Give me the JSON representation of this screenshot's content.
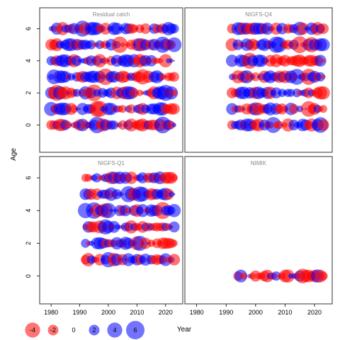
{
  "chart_data": {
    "type": "scatter",
    "subtype": "bubble-residual",
    "x_label": "Year",
    "y_label": "Age",
    "xlim": [
      1976,
      2026
    ],
    "ylim": [
      -1.7,
      7.3
    ],
    "x_ticks": [
      1980,
      1990,
      2000,
      2010,
      2020
    ],
    "y_ticks": [
      0,
      2,
      4,
      6
    ],
    "x_tick_labels": [
      "1980",
      "1990",
      "2000",
      "2010",
      "2020"
    ],
    "y_tick_labels": [
      "0",
      "2",
      "4",
      "6"
    ],
    "colors": {
      "positive": "#0000ff",
      "negative": "#ff0000",
      "frame": "#555555"
    },
    "legend": {
      "position": "bottom-left",
      "values": [
        -4,
        -2,
        0,
        2,
        4,
        6
      ],
      "labels": [
        "-4",
        "-2",
        "0",
        "2",
        "4",
        "6"
      ]
    },
    "panels": [
      {
        "title": "Residual catch",
        "years": [
          1980,
          2023
        ],
        "ages": [
          0,
          6
        ],
        "seed": 11
      },
      {
        "title": "NIGFS-Q4",
        "years": [
          1992,
          2023
        ],
        "ages": [
          0,
          6
        ],
        "seed": 29
      },
      {
        "title": "NIGFS-Q1",
        "years": [
          1992,
          2023
        ],
        "ages": [
          1,
          6
        ],
        "seed": 47
      },
      {
        "title": "NIMIK",
        "years": [
          1994,
          2023
        ],
        "ages": [
          0,
          0
        ],
        "seed": 63
      }
    ]
  }
}
